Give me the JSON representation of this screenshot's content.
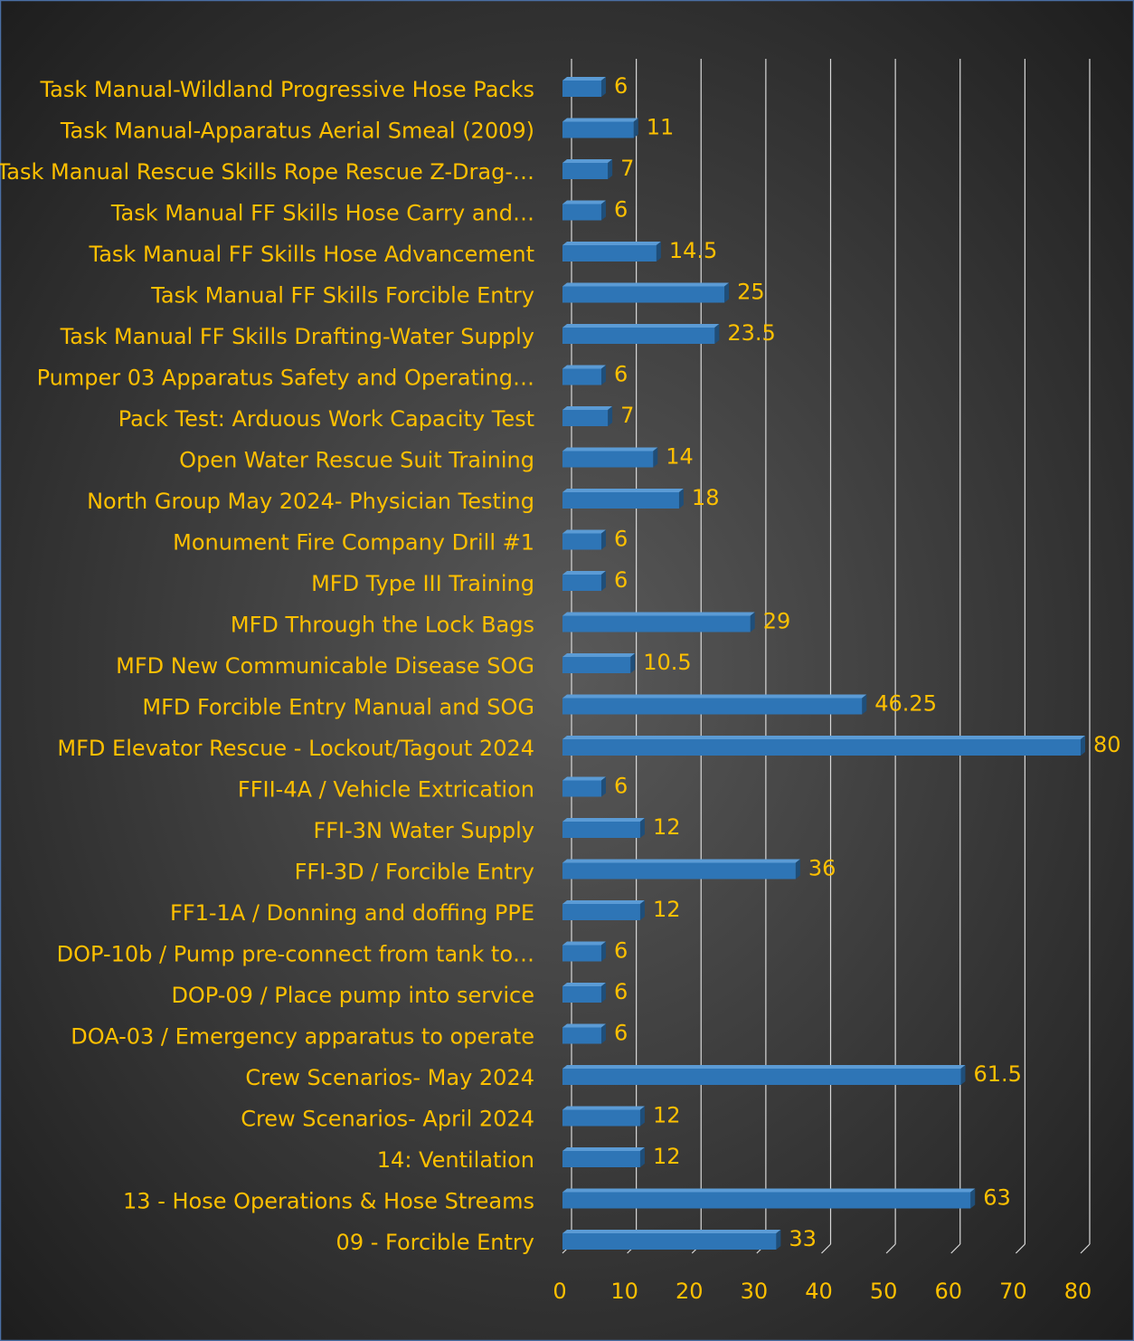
{
  "chart_data": {
    "type": "bar",
    "orientation": "horizontal",
    "categories": [
      "Task Manual-Wildland Progressive Hose Packs",
      "Task Manual-Apparatus Aerial Smeal (2009)",
      "Task Manual Rescue Skills Rope Rescue Z-Drag-…",
      "Task Manual FF Skills Hose Carry and…",
      "Task Manual FF Skills Hose Advancement",
      "Task Manual FF Skills Forcible Entry",
      "Task Manual FF Skills Drafting-Water Supply",
      "Pumper 03 Apparatus Safety and Operating…",
      "Pack Test: Arduous Work Capacity Test",
      "Open Water Rescue Suit Training",
      "North Group May 2024- Physician Testing",
      "Monument Fire Company Drill #1",
      "MFD Type III Training",
      "MFD Through the Lock Bags",
      "MFD New Communicable Disease SOG",
      "MFD Forcible Entry Manual and SOG",
      "MFD Elevator Rescue - Lockout/Tagout 2024",
      "FFII-4A / Vehicle Extrication",
      "FFI-3N Water Supply",
      "FFI-3D / Forcible Entry",
      "FF1-1A / Donning and doffing PPE",
      "DOP-10b / Pump pre-connect from tank to…",
      "DOP-09 / Place pump into service",
      "DOA-03 / Emergency apparatus to operate",
      "Crew Scenarios- May 2024",
      "Crew Scenarios- April 2024",
      "14: Ventilation",
      "13 - Hose Operations & Hose Streams",
      "09 - Forcible Entry"
    ],
    "values": [
      6,
      11,
      7,
      6,
      14.5,
      25,
      23.5,
      6,
      7,
      14,
      18,
      6,
      6,
      29,
      10.5,
      46.25,
      80,
      6,
      12,
      36,
      12,
      6,
      6,
      6,
      61.5,
      12,
      12,
      63,
      33
    ],
    "color": "#2e75b6",
    "xlim": [
      0,
      80
    ],
    "xticks": [
      0,
      10,
      20,
      30,
      40,
      50,
      60,
      70,
      80
    ],
    "grid": true
  }
}
